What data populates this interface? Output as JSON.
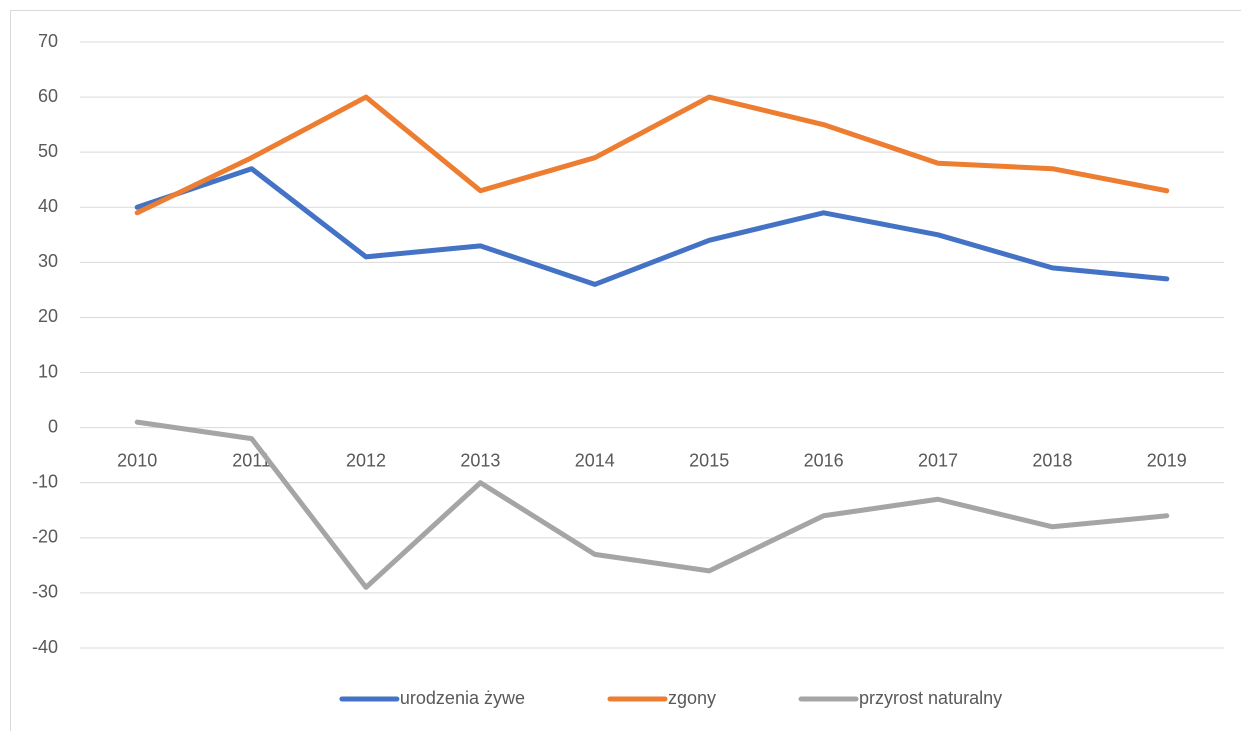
{
  "chart_data": {
    "type": "line",
    "categories": [
      "2010",
      "2011",
      "2012",
      "2013",
      "2014",
      "2015",
      "2016",
      "2017",
      "2018",
      "2019"
    ],
    "series": [
      {
        "name": "urodzenia żywe",
        "color": "#4472c4",
        "values": [
          40,
          47,
          31,
          33,
          26,
          34,
          39,
          35,
          29,
          27
        ]
      },
      {
        "name": "zgony",
        "color": "#ed7d31",
        "values": [
          39,
          49,
          60,
          43,
          49,
          60,
          55,
          48,
          47,
          43
        ]
      },
      {
        "name": "przyrost naturalny",
        "color": "#a5a5a5",
        "values": [
          1,
          -2,
          -29,
          -10,
          -23,
          -26,
          -16,
          -13,
          -18,
          -16
        ]
      }
    ],
    "ylim": [
      -40,
      70
    ],
    "yticks": [
      -40,
      -30,
      -20,
      -10,
      0,
      10,
      20,
      30,
      40,
      50,
      60,
      70
    ],
    "grid": true,
    "legend": "bottom"
  }
}
